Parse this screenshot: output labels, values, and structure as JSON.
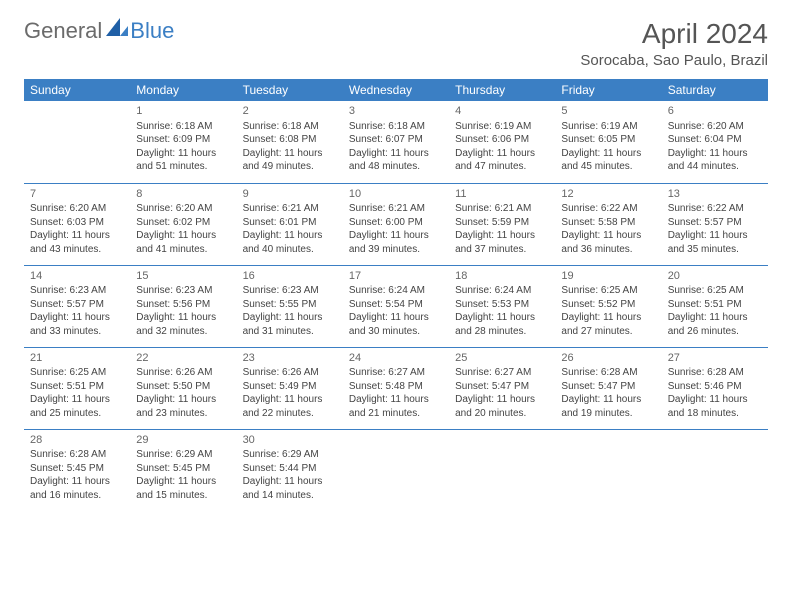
{
  "logo": {
    "text1": "General",
    "text2": "Blue"
  },
  "title": "April 2024",
  "location": "Sorocaba, Sao Paulo, Brazil",
  "colors": {
    "header_bg": "#3b7fc4",
    "header_text": "#ffffff",
    "divider": "#3b7fc4",
    "body_text": "#444444",
    "title_text": "#555555"
  },
  "day_headers": [
    "Sunday",
    "Monday",
    "Tuesday",
    "Wednesday",
    "Thursday",
    "Friday",
    "Saturday"
  ],
  "weeks": [
    [
      null,
      {
        "n": "1",
        "sr": "Sunrise: 6:18 AM",
        "ss": "Sunset: 6:09 PM",
        "d1": "Daylight: 11 hours",
        "d2": "and 51 minutes."
      },
      {
        "n": "2",
        "sr": "Sunrise: 6:18 AM",
        "ss": "Sunset: 6:08 PM",
        "d1": "Daylight: 11 hours",
        "d2": "and 49 minutes."
      },
      {
        "n": "3",
        "sr": "Sunrise: 6:18 AM",
        "ss": "Sunset: 6:07 PM",
        "d1": "Daylight: 11 hours",
        "d2": "and 48 minutes."
      },
      {
        "n": "4",
        "sr": "Sunrise: 6:19 AM",
        "ss": "Sunset: 6:06 PM",
        "d1": "Daylight: 11 hours",
        "d2": "and 47 minutes."
      },
      {
        "n": "5",
        "sr": "Sunrise: 6:19 AM",
        "ss": "Sunset: 6:05 PM",
        "d1": "Daylight: 11 hours",
        "d2": "and 45 minutes."
      },
      {
        "n": "6",
        "sr": "Sunrise: 6:20 AM",
        "ss": "Sunset: 6:04 PM",
        "d1": "Daylight: 11 hours",
        "d2": "and 44 minutes."
      }
    ],
    [
      {
        "n": "7",
        "sr": "Sunrise: 6:20 AM",
        "ss": "Sunset: 6:03 PM",
        "d1": "Daylight: 11 hours",
        "d2": "and 43 minutes."
      },
      {
        "n": "8",
        "sr": "Sunrise: 6:20 AM",
        "ss": "Sunset: 6:02 PM",
        "d1": "Daylight: 11 hours",
        "d2": "and 41 minutes."
      },
      {
        "n": "9",
        "sr": "Sunrise: 6:21 AM",
        "ss": "Sunset: 6:01 PM",
        "d1": "Daylight: 11 hours",
        "d2": "and 40 minutes."
      },
      {
        "n": "10",
        "sr": "Sunrise: 6:21 AM",
        "ss": "Sunset: 6:00 PM",
        "d1": "Daylight: 11 hours",
        "d2": "and 39 minutes."
      },
      {
        "n": "11",
        "sr": "Sunrise: 6:21 AM",
        "ss": "Sunset: 5:59 PM",
        "d1": "Daylight: 11 hours",
        "d2": "and 37 minutes."
      },
      {
        "n": "12",
        "sr": "Sunrise: 6:22 AM",
        "ss": "Sunset: 5:58 PM",
        "d1": "Daylight: 11 hours",
        "d2": "and 36 minutes."
      },
      {
        "n": "13",
        "sr": "Sunrise: 6:22 AM",
        "ss": "Sunset: 5:57 PM",
        "d1": "Daylight: 11 hours",
        "d2": "and 35 minutes."
      }
    ],
    [
      {
        "n": "14",
        "sr": "Sunrise: 6:23 AM",
        "ss": "Sunset: 5:57 PM",
        "d1": "Daylight: 11 hours",
        "d2": "and 33 minutes."
      },
      {
        "n": "15",
        "sr": "Sunrise: 6:23 AM",
        "ss": "Sunset: 5:56 PM",
        "d1": "Daylight: 11 hours",
        "d2": "and 32 minutes."
      },
      {
        "n": "16",
        "sr": "Sunrise: 6:23 AM",
        "ss": "Sunset: 5:55 PM",
        "d1": "Daylight: 11 hours",
        "d2": "and 31 minutes."
      },
      {
        "n": "17",
        "sr": "Sunrise: 6:24 AM",
        "ss": "Sunset: 5:54 PM",
        "d1": "Daylight: 11 hours",
        "d2": "and 30 minutes."
      },
      {
        "n": "18",
        "sr": "Sunrise: 6:24 AM",
        "ss": "Sunset: 5:53 PM",
        "d1": "Daylight: 11 hours",
        "d2": "and 28 minutes."
      },
      {
        "n": "19",
        "sr": "Sunrise: 6:25 AM",
        "ss": "Sunset: 5:52 PM",
        "d1": "Daylight: 11 hours",
        "d2": "and 27 minutes."
      },
      {
        "n": "20",
        "sr": "Sunrise: 6:25 AM",
        "ss": "Sunset: 5:51 PM",
        "d1": "Daylight: 11 hours",
        "d2": "and 26 minutes."
      }
    ],
    [
      {
        "n": "21",
        "sr": "Sunrise: 6:25 AM",
        "ss": "Sunset: 5:51 PM",
        "d1": "Daylight: 11 hours",
        "d2": "and 25 minutes."
      },
      {
        "n": "22",
        "sr": "Sunrise: 6:26 AM",
        "ss": "Sunset: 5:50 PM",
        "d1": "Daylight: 11 hours",
        "d2": "and 23 minutes."
      },
      {
        "n": "23",
        "sr": "Sunrise: 6:26 AM",
        "ss": "Sunset: 5:49 PM",
        "d1": "Daylight: 11 hours",
        "d2": "and 22 minutes."
      },
      {
        "n": "24",
        "sr": "Sunrise: 6:27 AM",
        "ss": "Sunset: 5:48 PM",
        "d1": "Daylight: 11 hours",
        "d2": "and 21 minutes."
      },
      {
        "n": "25",
        "sr": "Sunrise: 6:27 AM",
        "ss": "Sunset: 5:47 PM",
        "d1": "Daylight: 11 hours",
        "d2": "and 20 minutes."
      },
      {
        "n": "26",
        "sr": "Sunrise: 6:28 AM",
        "ss": "Sunset: 5:47 PM",
        "d1": "Daylight: 11 hours",
        "d2": "and 19 minutes."
      },
      {
        "n": "27",
        "sr": "Sunrise: 6:28 AM",
        "ss": "Sunset: 5:46 PM",
        "d1": "Daylight: 11 hours",
        "d2": "and 18 minutes."
      }
    ],
    [
      {
        "n": "28",
        "sr": "Sunrise: 6:28 AM",
        "ss": "Sunset: 5:45 PM",
        "d1": "Daylight: 11 hours",
        "d2": "and 16 minutes."
      },
      {
        "n": "29",
        "sr": "Sunrise: 6:29 AM",
        "ss": "Sunset: 5:45 PM",
        "d1": "Daylight: 11 hours",
        "d2": "and 15 minutes."
      },
      {
        "n": "30",
        "sr": "Sunrise: 6:29 AM",
        "ss": "Sunset: 5:44 PM",
        "d1": "Daylight: 11 hours",
        "d2": "and 14 minutes."
      },
      null,
      null,
      null,
      null
    ]
  ]
}
